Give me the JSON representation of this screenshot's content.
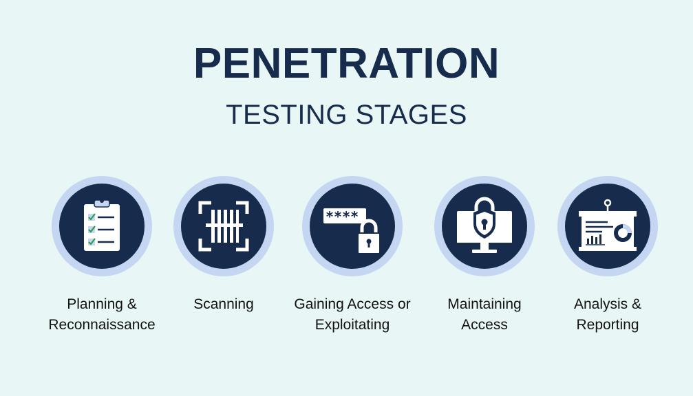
{
  "header": {
    "title": "PENETRATION",
    "subtitle": "TESTING STAGES"
  },
  "colors": {
    "background": "#e8f6f5",
    "navy": "#172b4d",
    "ring": "#c4d6f1",
    "icon": "#ffffff"
  },
  "stages": [
    {
      "label_line1": "Planning &",
      "label_line2": "Reconnaissance",
      "icon": "clipboard-checklist-icon"
    },
    {
      "label_line1": "Scanning",
      "label_line2": "",
      "icon": "barcode-scan-icon"
    },
    {
      "label_line1": "Gaining Access or",
      "label_line2": "Exploitating",
      "icon": "password-padlock-icon"
    },
    {
      "label_line1": "Maintaining",
      "label_line2": "Access",
      "icon": "monitor-shield-lock-icon"
    },
    {
      "label_line1": "Analysis &",
      "label_line2": "Reporting",
      "icon": "presentation-board-icon"
    }
  ]
}
